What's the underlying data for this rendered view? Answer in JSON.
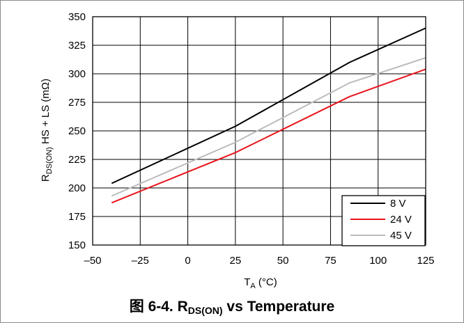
{
  "chart_data": {
    "type": "line",
    "title": {
      "prefix": "图 6-4. R",
      "sub": "DS(ON)",
      "suffix": " vs Temperature"
    },
    "xlabel": {
      "main": "T",
      "sub": "A",
      "suffix": " (°C)"
    },
    "ylabel": {
      "main": "R",
      "sub": "DS(ON)",
      "suffix": " HS + LS (mΩ)"
    },
    "xlim": [
      -50,
      125
    ],
    "ylim": [
      150,
      350
    ],
    "xticks": [
      -50,
      -25,
      0,
      25,
      50,
      75,
      100,
      125
    ],
    "xtick_labels": [
      "–50",
      "–25",
      "0",
      "25",
      "50",
      "75",
      "100",
      "125"
    ],
    "yticks": [
      150,
      175,
      200,
      225,
      250,
      275,
      300,
      325,
      350
    ],
    "ytick_labels": [
      "150",
      "175",
      "200",
      "225",
      "250",
      "275",
      "300",
      "325",
      "350"
    ],
    "grid": true,
    "legend_position": "bottom-right",
    "series": [
      {
        "name": "8 V",
        "color": "#000000",
        "x": [
          -40,
          25,
          85,
          125
        ],
        "y": [
          204,
          254,
          310,
          340
        ]
      },
      {
        "name": "24 V",
        "color": "#e8141c",
        "x": [
          -40,
          25,
          85,
          125
        ],
        "y": [
          187,
          231,
          280,
          304
        ]
      },
      {
        "name": "45 V",
        "color": "#bcbcbc",
        "x": [
          -40,
          25,
          85,
          125
        ],
        "y": [
          193,
          240,
          292,
          314
        ]
      }
    ]
  }
}
